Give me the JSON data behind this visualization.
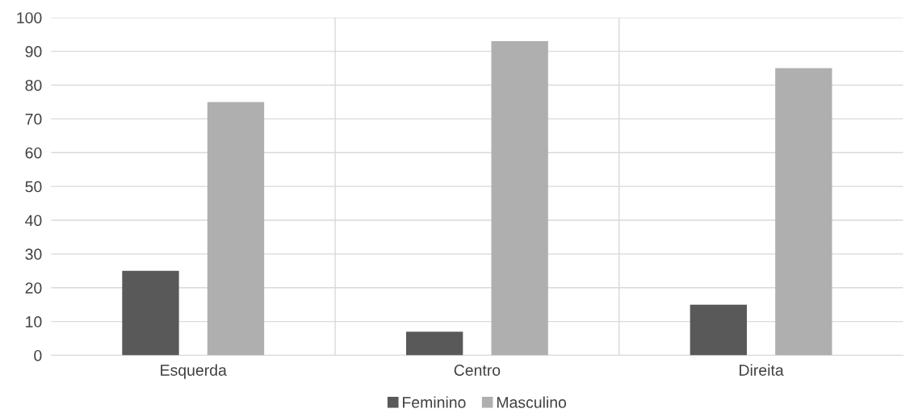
{
  "chart_data": {
    "type": "bar",
    "categories": [
      "Esquerda",
      "Centro",
      "Direita"
    ],
    "series": [
      {
        "name": "Feminino",
        "color": "#595959",
        "values": [
          25,
          7,
          15
        ]
      },
      {
        "name": "Masculino",
        "color": "#afafaf",
        "values": [
          75,
          93,
          85
        ]
      }
    ],
    "ylim": [
      0,
      100
    ],
    "yticks": [
      0,
      10,
      20,
      30,
      40,
      50,
      60,
      70,
      80,
      90,
      100
    ],
    "grid": true,
    "legend": "bottom"
  }
}
